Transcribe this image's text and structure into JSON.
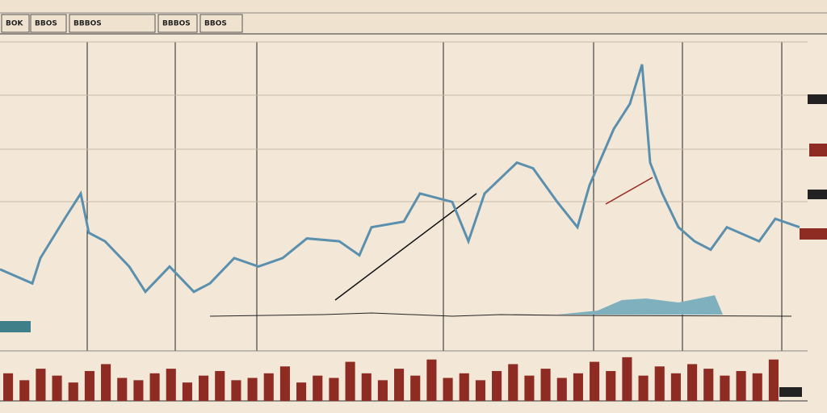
{
  "toolbar": {
    "tabs": [
      "BOK",
      "BBOS",
      "BBBOS",
      "BBBOS",
      "BBOS"
    ]
  },
  "chart_data": {
    "type": "line",
    "x": [
      0,
      40,
      50,
      80,
      100,
      110,
      130,
      160,
      180,
      210,
      240,
      260,
      290,
      320,
      350,
      380,
      420,
      445,
      460,
      500,
      520,
      560,
      580,
      600,
      640,
      660,
      690,
      715,
      730,
      760,
      780,
      795,
      805,
      820,
      840,
      860,
      880,
      900,
      940,
      960,
      990
    ],
    "series": [
      {
        "color": "#5b8fae",
        "values": [
          19,
          14,
          23,
          37,
          46,
          32,
          29,
          20,
          11,
          20,
          11,
          14,
          23,
          20,
          23,
          30,
          29,
          24,
          34,
          36,
          46,
          43,
          29,
          46,
          57,
          55,
          43,
          34,
          49,
          69,
          78,
          92,
          57,
          46,
          34,
          29,
          26,
          34,
          29,
          37,
          34
        ]
      }
    ],
    "xlim": [
      0,
      1000
    ],
    "ylim": [
      0,
      100
    ]
  },
  "volume_data": {
    "type": "bar",
    "color": "#8e2b22",
    "values": [
      60,
      45,
      70,
      55,
      40,
      65,
      80,
      50,
      45,
      60,
      70,
      40,
      55,
      65,
      45,
      50,
      60,
      75,
      40,
      55,
      50,
      85,
      60,
      45,
      70,
      55,
      90,
      50,
      60,
      45,
      65,
      80,
      55,
      70,
      50,
      60,
      85,
      65,
      95,
      55,
      75,
      60,
      80,
      70,
      55,
      65,
      60,
      90
    ],
    "ylim": [
      0,
      100
    ]
  }
}
